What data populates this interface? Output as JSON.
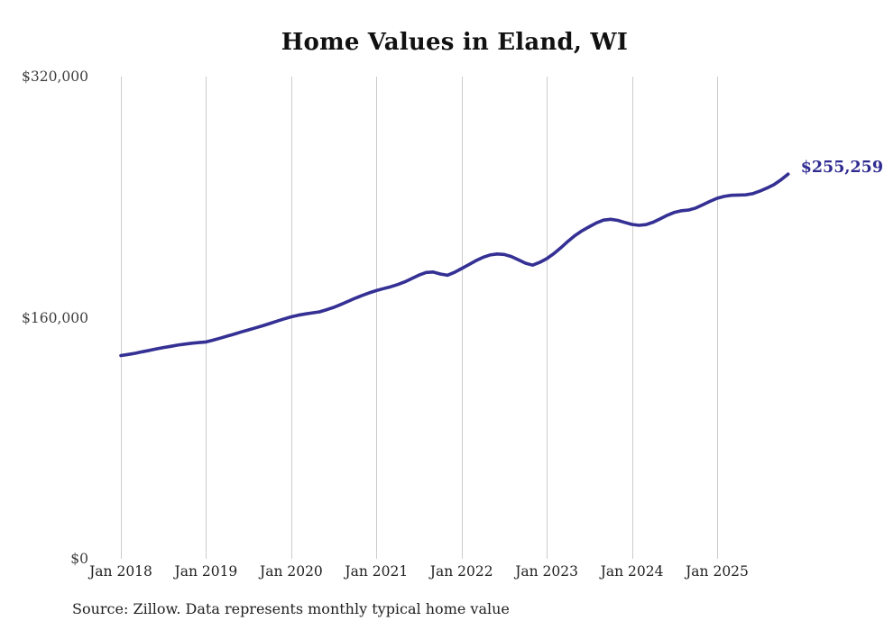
{
  "title": "Home Values in Eland, WI",
  "source_note": "Source: Zillow. Data represents monthly typical home value",
  "latest_point": {
    "label": "$255,259",
    "value": 255259,
    "month": "2025-11"
  },
  "colors": {
    "line": "#343094",
    "annotation": "#302b90",
    "gridline": "#cccccc",
    "title": "#111111",
    "axis_text": "#3d3d3d"
  },
  "y_axis": {
    "tick_labels": [
      "$320,000",
      "$160,000",
      "$0"
    ],
    "tick_values": [
      320000,
      160000,
      0
    ],
    "min": 0,
    "max": 320000
  },
  "x_axis": {
    "tick_labels": [
      "Jan 2018",
      "Jan 2019",
      "Jan 2020",
      "Jan 2021",
      "Jan 2022",
      "Jan 2023",
      "Jan 2024",
      "Jan 2025"
    ]
  },
  "chart_data": {
    "type": "line",
    "title": "Home Values in Eland, WI",
    "xlabel": "",
    "ylabel": "",
    "ylim": [
      0,
      320000
    ],
    "yticks": [
      0,
      160000,
      320000
    ],
    "grid": "vertical-yearly-only",
    "legend": "none",
    "annotation": "$255,259 at final point",
    "x": [
      "2018-01",
      "2018-02",
      "2018-03",
      "2018-04",
      "2018-05",
      "2018-06",
      "2018-07",
      "2018-08",
      "2018-09",
      "2018-10",
      "2018-11",
      "2018-12",
      "2019-01",
      "2019-02",
      "2019-03",
      "2019-04",
      "2019-05",
      "2019-06",
      "2019-07",
      "2019-08",
      "2019-09",
      "2019-10",
      "2019-11",
      "2019-12",
      "2020-01",
      "2020-02",
      "2020-03",
      "2020-04",
      "2020-05",
      "2020-06",
      "2020-07",
      "2020-08",
      "2020-09",
      "2020-10",
      "2020-11",
      "2020-12",
      "2021-01",
      "2021-02",
      "2021-03",
      "2021-04",
      "2021-05",
      "2021-06",
      "2021-07",
      "2021-08",
      "2021-09",
      "2021-10",
      "2021-11",
      "2021-12",
      "2022-01",
      "2022-02",
      "2022-03",
      "2022-04",
      "2022-05",
      "2022-06",
      "2022-07",
      "2022-08",
      "2022-09",
      "2022-10",
      "2022-11",
      "2022-12",
      "2023-01",
      "2023-02",
      "2023-03",
      "2023-04",
      "2023-05",
      "2023-06",
      "2023-07",
      "2023-08",
      "2023-09",
      "2023-10",
      "2023-11",
      "2023-12",
      "2024-01",
      "2024-02",
      "2024-03",
      "2024-04",
      "2024-05",
      "2024-06",
      "2024-07",
      "2024-08",
      "2024-09",
      "2024-10",
      "2024-11",
      "2024-12",
      "2025-01",
      "2025-02",
      "2025-03",
      "2025-04",
      "2025-05",
      "2025-06",
      "2025-07",
      "2025-08",
      "2025-09",
      "2025-10",
      "2025-11"
    ],
    "series": [
      {
        "name": "Typical home value",
        "values": [
          134900,
          135600,
          136400,
          137400,
          138300,
          139300,
          140200,
          141000,
          141800,
          142500,
          143100,
          143500,
          143900,
          145100,
          146400,
          147800,
          149200,
          150600,
          151900,
          153300,
          154700,
          156200,
          157700,
          159200,
          160600,
          161700,
          162500,
          163200,
          163900,
          165300,
          166900,
          168800,
          170800,
          172900,
          174800,
          176500,
          178000,
          179300,
          180500,
          182000,
          183800,
          186000,
          188300,
          190000,
          190300,
          189000,
          188200,
          190100,
          192600,
          195200,
          197800,
          200000,
          201600,
          202300,
          202000,
          200600,
          198400,
          196200,
          194900,
          196700,
          199200,
          202500,
          206500,
          210800,
          214600,
          217800,
          220400,
          222900,
          224800,
          225300,
          224600,
          223200,
          221900,
          221300,
          221800,
          223400,
          225700,
          228000,
          229900,
          231000,
          231500,
          232800,
          235000,
          237200,
          239250,
          240500,
          241200,
          241400,
          241500,
          242300,
          244000,
          246000,
          248300,
          251500,
          255259
        ]
      }
    ]
  }
}
